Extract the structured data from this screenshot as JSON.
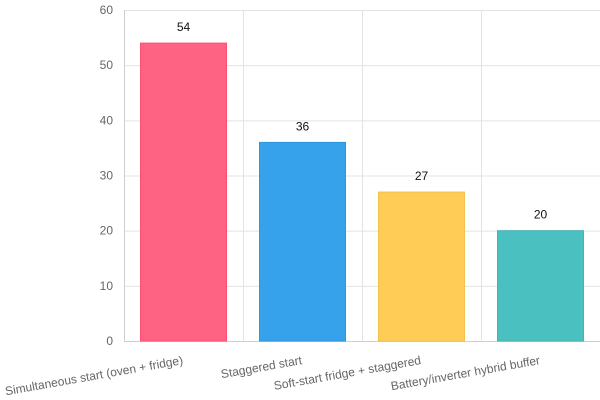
{
  "chart_data": {
    "type": "bar",
    "categories": [
      "Simultaneous start (oven + fridge)",
      "Staggered start",
      "Soft-start fridge + staggered",
      "Battery/inverter hybrid buffer"
    ],
    "values": [
      54,
      36,
      27,
      20
    ],
    "ylim": [
      0,
      60
    ],
    "yticks": [
      0,
      10,
      20,
      30,
      40,
      50,
      60
    ],
    "grid": true,
    "legend": "none",
    "colors": [
      "#ff6384",
      "#36a2eb",
      "#ffcd56",
      "#4bc0c0"
    ],
    "border_colors": [
      "#ff4d73",
      "#2f95df",
      "#f3c24a",
      "#45b3b3"
    ]
  }
}
